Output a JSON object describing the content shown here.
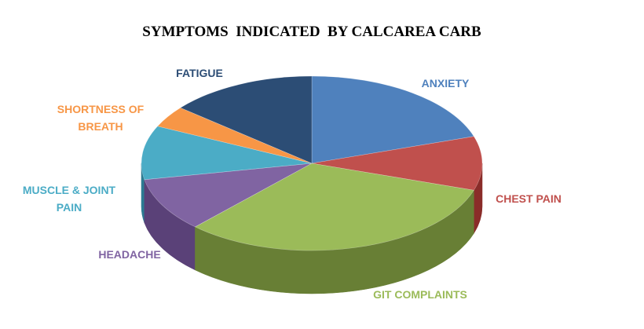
{
  "chart_data": {
    "type": "pie",
    "title": "SYMPTOMS  INDICATED  BY CALCAREA CARB",
    "style": "3d",
    "slices": [
      {
        "label": "ANXIETY",
        "label_lines": [
          "ANXIETY"
        ],
        "value": 20,
        "color": "#4F81BD",
        "side_color": "#2E5687"
      },
      {
        "label": "CHEST PAIN",
        "label_lines": [
          "CHEST PAIN"
        ],
        "value": 10,
        "color": "#C0504D",
        "side_color": "#8A2C29"
      },
      {
        "label": "GIT COMPLAINTS",
        "label_lines": [
          "GIT COMPLAINTS"
        ],
        "value": 32,
        "color": "#9BBB59",
        "side_color": "#687F35"
      },
      {
        "label": "HEADACHE",
        "label_lines": [
          "HEADACHE"
        ],
        "value": 10,
        "color": "#8064A2",
        "side_color": "#5A4178"
      },
      {
        "label": "MUSCLE & JOINT PAIN",
        "label_lines": [
          "MUSCLE & JOINT",
          "PAIN"
        ],
        "value": 10,
        "color": "#4BACC6",
        "side_color": "#2C7B92"
      },
      {
        "label": "SHORTNESS OF BREATH",
        "label_lines": [
          "SHORTNESS OF",
          "BREATH"
        ],
        "value": 4,
        "color": "#F79646",
        "side_color": "#B8661F"
      },
      {
        "label": "FATIGUE",
        "label_lines": [
          "FATIGUE"
        ],
        "value": 14,
        "color": "#2C4D75",
        "side_color": "#1A3150"
      }
    ]
  }
}
